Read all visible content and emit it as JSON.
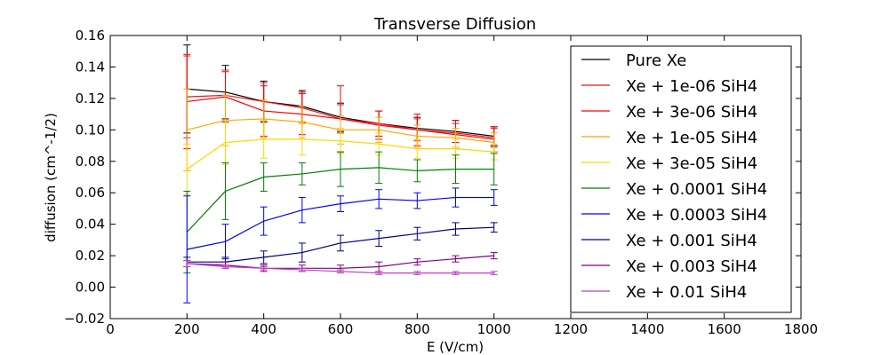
{
  "chart_data": {
    "type": "line",
    "title": "Transverse Diffusion",
    "xlabel": "E (V/cm)",
    "ylabel": "diffusion (cm^-1/2)",
    "xlim": [
      0,
      1800
    ],
    "ylim": [
      -0.02,
      0.16
    ],
    "xticks": [
      0,
      200,
      400,
      600,
      800,
      1000,
      1200,
      1400,
      1600,
      1800
    ],
    "xtick_labels": [
      "0",
      "200",
      "400",
      "600",
      "800",
      "1000",
      "1200",
      "1400",
      "1600",
      "1800"
    ],
    "yticks": [
      -0.02,
      0.0,
      0.02,
      0.04,
      0.06,
      0.08,
      0.1,
      0.12,
      0.14,
      0.16
    ],
    "ytick_labels": [
      "−0.02",
      "0.00",
      "0.02",
      "0.04",
      "0.06",
      "0.08",
      "0.10",
      "0.12",
      "0.14",
      "0.16"
    ],
    "grid": false,
    "legend_position": "top-right",
    "x": [
      200,
      300,
      400,
      500,
      600,
      700,
      800,
      900,
      1000
    ],
    "series": [
      {
        "name": "Pure Xe",
        "color": "#000000",
        "values": [
          0.126,
          0.124,
          0.118,
          0.115,
          0.108,
          0.104,
          0.101,
          0.099,
          0.096
        ],
        "errors": [
          0.028,
          0.017,
          0.013,
          0.01,
          0.009,
          0.008,
          0.007,
          0.007,
          0.006
        ]
      },
      {
        "name": "Xe + 1e-06 SiH4",
        "color": "#e41a1c",
        "values": [
          0.121,
          0.122,
          0.118,
          0.114,
          0.107,
          0.104,
          0.1,
          0.098,
          0.095
        ],
        "errors": [
          0.026,
          0.016,
          0.012,
          0.01,
          0.009,
          0.008,
          0.007,
          0.006,
          0.006
        ]
      },
      {
        "name": "Xe + 3e-06 SiH4",
        "color": "#ff0000",
        "values": [
          0.118,
          0.121,
          0.112,
          0.11,
          0.107,
          0.103,
          0.1,
          0.097,
          0.094
        ],
        "errors": [
          0.03,
          0.016,
          0.016,
          0.013,
          0.021,
          0.009,
          0.01,
          0.009,
          0.008
        ]
      },
      {
        "name": "Xe + 1e-05 SiH4",
        "color": "#ffa500",
        "values": [
          0.1,
          0.106,
          0.107,
          0.105,
          0.1,
          0.1,
          0.096,
          0.095,
          0.092
        ],
        "errors": [
          0.026,
          0.016,
          0.012,
          0.01,
          0.009,
          0.008,
          0.007,
          0.006,
          0.006
        ]
      },
      {
        "name": "Xe + 3e-05 SiH4",
        "color": "#ffd700",
        "values": [
          0.075,
          0.092,
          0.094,
          0.094,
          0.093,
          0.091,
          0.088,
          0.088,
          0.086
        ],
        "errors": [
          0.016,
          0.014,
          0.012,
          0.01,
          0.008,
          0.007,
          0.006,
          0.006,
          0.005
        ]
      },
      {
        "name": "Xe + 0.0001 SiH4",
        "color": "#008000",
        "values": [
          0.035,
          0.061,
          0.07,
          0.072,
          0.075,
          0.076,
          0.074,
          0.075,
          0.075
        ],
        "errors": [
          0.026,
          0.018,
          0.009,
          0.007,
          0.011,
          0.01,
          0.007,
          0.009,
          0.01
        ]
      },
      {
        "name": "Xe + 0.0003 SiH4",
        "color": "#0000ff",
        "values": [
          0.024,
          0.029,
          0.042,
          0.049,
          0.053,
          0.056,
          0.055,
          0.057,
          0.057
        ],
        "errors": [
          0.034,
          0.011,
          0.009,
          0.008,
          0.005,
          0.006,
          0.005,
          0.006,
          0.005
        ]
      },
      {
        "name": "Xe + 0.001 SiH4",
        "color": "#000080",
        "values": [
          0.016,
          0.016,
          0.019,
          0.022,
          0.028,
          0.031,
          0.034,
          0.037,
          0.038
        ],
        "errors": [
          0.003,
          0.003,
          0.004,
          0.006,
          0.005,
          0.005,
          0.004,
          0.004,
          0.003
        ]
      },
      {
        "name": "Xe + 0.003 SiH4",
        "color": "#800080",
        "values": [
          0.015,
          0.014,
          0.012,
          0.012,
          0.012,
          0.013,
          0.016,
          0.018,
          0.02
        ],
        "errors": [
          0.002,
          0.002,
          0.002,
          0.002,
          0.002,
          0.003,
          0.002,
          0.002,
          0.002
        ]
      },
      {
        "name": "Xe + 0.01 SiH4",
        "color": "#bf40bf",
        "values": [
          0.015,
          0.013,
          0.012,
          0.011,
          0.01,
          0.009,
          0.009,
          0.009,
          0.009
        ],
        "errors": [
          0.002,
          0.001,
          0.001,
          0.001,
          0.001,
          0.001,
          0.001,
          0.001,
          0.001
        ]
      }
    ]
  }
}
